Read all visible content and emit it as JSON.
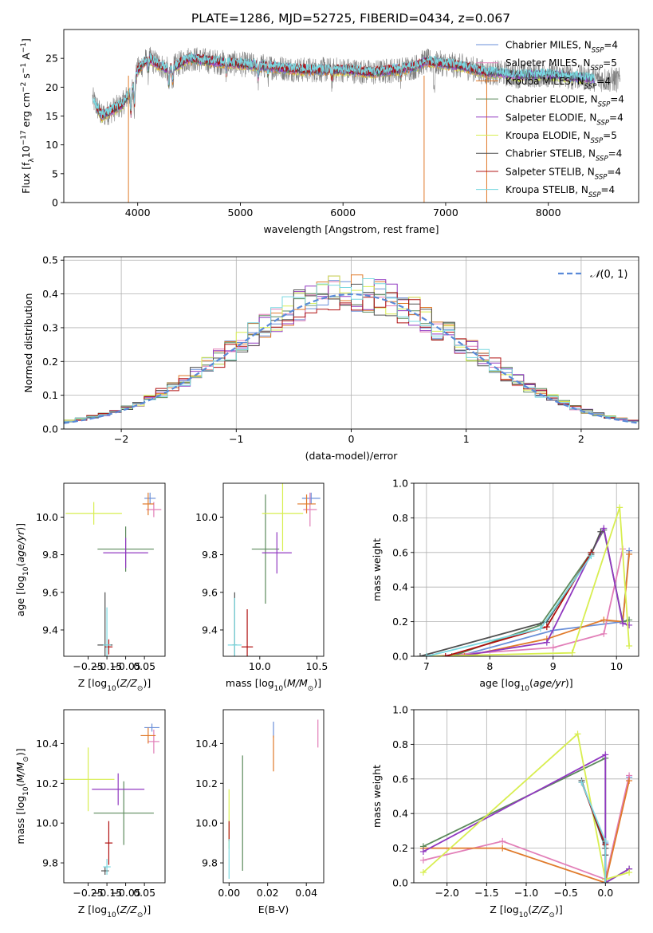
{
  "figure": {
    "title": "PLATE=1286, MJD=52725, FIBERID=0434, z=0.067"
  },
  "palette": [
    "#6a8fd8",
    "#e27fb8",
    "#e07a2a",
    "#5c8a5c",
    "#9038c0",
    "#d8ee50",
    "#505050",
    "#b01010",
    "#7ad8e0"
  ],
  "chart_data": [
    {
      "id": "spectrum",
      "type": "line",
      "xlabel": "wavelength [Angstrom, rest frame]",
      "ylabel": "Flux [f_λ 10^-17 erg cm^-2 s^-1 A^-1]",
      "xlim": [
        3280,
        8880
      ],
      "ylim": [
        0,
        30
      ],
      "xticks": [
        4000,
        5000,
        6000,
        7000,
        8000
      ],
      "yticks": [
        0,
        5,
        10,
        15,
        20,
        25
      ],
      "grid": false,
      "legend_position": "top-right",
      "series": [
        {
          "name": "Chabrier MILES, N_SSP=4"
        },
        {
          "name": "Salpeter MILES, N_SSP=5"
        },
        {
          "name": "Kroupa MILES, N_SSP=4"
        },
        {
          "name": "Chabrier ELODIE, N_SSP=4"
        },
        {
          "name": "Salpeter ELODIE, N_SSP=4"
        },
        {
          "name": "Kroupa ELODIE, N_SSP=5"
        },
        {
          "name": "Chabrier STELIB, N_SSP=4"
        },
        {
          "name": "Salpeter STELIB, N_SSP=4"
        },
        {
          "name": "Kroupa STELIB, N_SSP=4"
        }
      ],
      "continuum": {
        "wavelength": [
          3560,
          3650,
          3750,
          3850,
          3950,
          4000,
          4100,
          4200,
          4300,
          4500,
          4700,
          5000,
          5300,
          5600,
          6000,
          6300,
          6500,
          6700,
          6800,
          7000,
          7200,
          7400,
          7500,
          7700,
          8000,
          8200,
          8400,
          8700
        ],
        "flux": [
          18,
          15,
          16,
          17,
          20,
          23,
          25,
          24,
          23,
          25,
          24.5,
          24,
          23.5,
          23,
          23,
          22.5,
          23,
          23.5,
          24.5,
          24,
          23.5,
          22.5,
          22.5,
          22,
          22.2,
          21.8,
          21.5,
          21.2
        ]
      }
    },
    {
      "id": "residuals",
      "type": "histogram",
      "xlabel": "(data-model)/error",
      "ylabel": "Normed distribution",
      "xlim": [
        -2.5,
        2.5
      ],
      "ylim": [
        0,
        0.51
      ],
      "xticks": [
        -2,
        -1,
        0,
        1,
        2
      ],
      "yticks": [
        0.0,
        0.1,
        0.2,
        0.3,
        0.4,
        0.5
      ],
      "grid": true,
      "legend_position": "top-right",
      "reference": {
        "name": "N(0,1)",
        "mean": 0,
        "sigma": 1
      },
      "bins": {
        "start": -2.5,
        "width": 0.1,
        "count": 50
      }
    },
    {
      "id": "age_vs_Z",
      "type": "scatter",
      "xlabel": "Z [log10(Z/Z⊙)]",
      "ylabel": "age [log10(age/yr)]",
      "xlim": [
        -0.38,
        0.16
      ],
      "ylim": [
        9.26,
        10.18
      ],
      "xticks": [
        -0.25,
        -0.15,
        -0.05,
        0.05
      ],
      "yticks": [
        9.4,
        9.6,
        9.8,
        10.0
      ],
      "points": [
        {
          "x": 0.08,
          "y": 10.1,
          "xerr": 0.03,
          "yerr": 0.03,
          "color": 0
        },
        {
          "x": 0.1,
          "y": 10.04,
          "xerr": 0.04,
          "yerr": 0.04,
          "color": 1
        },
        {
          "x": 0.07,
          "y": 10.07,
          "xerr": 0.03,
          "yerr": 0.06,
          "color": 2
        },
        {
          "x": -0.05,
          "y": 9.83,
          "xerr": 0.15,
          "yerr": 0.12,
          "color": 3
        },
        {
          "x": -0.05,
          "y": 9.81,
          "xerr": 0.12,
          "yerr": 0.08,
          "color": 4
        },
        {
          "x": -0.22,
          "y": 10.02,
          "xerr": 0.15,
          "yerr": 0.06,
          "color": 5
        },
        {
          "x": -0.16,
          "y": 9.32,
          "xerr": 0.04,
          "yerr": 0.28,
          "color": 6
        },
        {
          "x": -0.14,
          "y": 9.31,
          "xerr": 0.02,
          "yerr": 0.04,
          "color": 7
        },
        {
          "x": -0.15,
          "y": 9.32,
          "xerr": 0.02,
          "yerr": 0.2,
          "color": 8
        }
      ]
    },
    {
      "id": "age_vs_mass",
      "type": "scatter",
      "xlabel": "mass [log10(M/M⊙)]",
      "ylabel": "",
      "xlim": [
        9.68,
        10.56
      ],
      "ylim": [
        9.26,
        10.18
      ],
      "xticks": [
        10.0,
        10.5
      ],
      "yticks": [
        9.4,
        9.6,
        9.8,
        10.0
      ],
      "points": [
        {
          "x": 10.45,
          "y": 10.1,
          "xerr": 0.08,
          "yerr": 0.03,
          "color": 0
        },
        {
          "x": 10.44,
          "y": 10.04,
          "xerr": 0.06,
          "yerr": 0.09,
          "color": 1
        },
        {
          "x": 10.41,
          "y": 10.07,
          "xerr": 0.08,
          "yerr": 0.05,
          "color": 2
        },
        {
          "x": 10.05,
          "y": 9.83,
          "xerr": 0.12,
          "yerr": 0.29,
          "color": 3
        },
        {
          "x": 10.15,
          "y": 9.81,
          "xerr": 0.13,
          "yerr": 0.11,
          "color": 4
        },
        {
          "x": 10.2,
          "y": 10.02,
          "xerr": 0.18,
          "yerr": 0.2,
          "color": 5
        },
        {
          "x": 9.78,
          "y": 9.32,
          "xerr": 0.02,
          "yerr": 0.28,
          "color": 6
        },
        {
          "x": 9.89,
          "y": 9.31,
          "xerr": 0.05,
          "yerr": 0.2,
          "color": 7
        },
        {
          "x": 9.78,
          "y": 9.32,
          "xerr": 0.06,
          "yerr": 0.25,
          "color": 8
        }
      ]
    },
    {
      "id": "weight_vs_age",
      "type": "line",
      "xlabel": "age [log10(age/yr)]",
      "ylabel": "mass weight",
      "xlim": [
        6.8,
        10.35
      ],
      "ylim": [
        0,
        1.0
      ],
      "xticks": [
        7,
        8,
        9,
        10
      ],
      "yticks": [
        0.0,
        0.2,
        0.4,
        0.6,
        0.8,
        1.0
      ],
      "grid": true,
      "series": [
        {
          "color": 0,
          "x": [
            7.5,
            9.0,
            10.1,
            10.2
          ],
          "y": [
            0.0,
            0.15,
            0.2,
            0.61
          ]
        },
        {
          "color": 1,
          "x": [
            7.1,
            9.0,
            9.8,
            10.1
          ],
          "y": [
            0.0,
            0.05,
            0.13,
            0.62
          ]
        },
        {
          "color": 2,
          "x": [
            7.6,
            8.9,
            9.8,
            10.1,
            10.2
          ],
          "y": [
            0.0,
            0.1,
            0.21,
            0.2,
            0.59
          ]
        },
        {
          "color": 3,
          "x": [
            7.4,
            8.8,
            9.6,
            9.8,
            10.1,
            10.2
          ],
          "y": [
            0.0,
            0.18,
            0.6,
            0.73,
            0.2,
            0.21
          ]
        },
        {
          "color": 4,
          "x": [
            7.5,
            8.9,
            9.8,
            10.1,
            10.2
          ],
          "y": [
            0.0,
            0.08,
            0.74,
            0.19,
            0.18
          ]
        },
        {
          "color": 5,
          "x": [
            7.0,
            9.3,
            10.05,
            10.2
          ],
          "y": [
            0.0,
            0.02,
            0.86,
            0.06
          ]
        },
        {
          "color": 6,
          "x": [
            6.9,
            8.9,
            9.6,
            9.75
          ],
          "y": [
            0.0,
            0.2,
            0.59,
            0.72
          ]
        },
        {
          "color": 7,
          "x": [
            7.3,
            8.9,
            9.6
          ],
          "y": [
            0.0,
            0.17,
            0.6
          ]
        },
        {
          "color": 8,
          "x": [
            7.0,
            8.8,
            9.6
          ],
          "y": [
            0.0,
            0.16,
            0.58
          ]
        }
      ]
    },
    {
      "id": "mass_vs_Z",
      "type": "scatter",
      "xlabel": "Z [log10(Z/Z⊙)]",
      "ylabel": "mass [log10(M/M⊙)]",
      "xlim": [
        -0.38,
        0.16
      ],
      "ylim": [
        9.7,
        10.57
      ],
      "xticks": [
        -0.25,
        -0.15,
        -0.05,
        0.05
      ],
      "yticks": [
        9.8,
        10.0,
        10.2,
        10.4
      ],
      "points": [
        {
          "x": 0.09,
          "y": 10.48,
          "xerr": 0.04,
          "yerr": 0.02,
          "color": 0
        },
        {
          "x": 0.1,
          "y": 10.41,
          "xerr": 0.03,
          "yerr": 0.06,
          "color": 1
        },
        {
          "x": 0.07,
          "y": 10.44,
          "xerr": 0.04,
          "yerr": 0.04,
          "color": 2
        },
        {
          "x": -0.06,
          "y": 10.05,
          "xerr": 0.16,
          "yerr": 0.16,
          "color": 3
        },
        {
          "x": -0.09,
          "y": 10.17,
          "xerr": 0.14,
          "yerr": 0.08,
          "color": 4
        },
        {
          "x": -0.25,
          "y": 10.22,
          "xerr": 0.14,
          "yerr": 0.16,
          "color": 5
        },
        {
          "x": -0.16,
          "y": 9.76,
          "xerr": 0.02,
          "yerr": 0.02,
          "color": 6
        },
        {
          "x": -0.14,
          "y": 9.9,
          "xerr": 0.02,
          "yerr": 0.11,
          "color": 7
        },
        {
          "x": -0.15,
          "y": 9.78,
          "xerr": 0.02,
          "yerr": 0.04,
          "color": 8
        }
      ]
    },
    {
      "id": "mass_vs_ebv",
      "type": "scatter",
      "xlabel": "E(B-V)",
      "ylabel": "",
      "xlim": [
        -0.003,
        0.049
      ],
      "ylim": [
        9.7,
        10.57
      ],
      "xticks": [
        0.0,
        0.02,
        0.04
      ],
      "yticks": [
        9.8,
        10.0,
        10.2,
        10.4
      ],
      "points": [
        {
          "x": 0.023,
          "y": 10.47,
          "yerr": 0.04,
          "color": 0
        },
        {
          "x": 0.046,
          "y": 10.45,
          "yerr": 0.07,
          "color": 1
        },
        {
          "x": 0.023,
          "y": 10.35,
          "yerr": 0.09,
          "color": 2
        },
        {
          "x": 0.007,
          "y": 10.05,
          "yerr": 0.29,
          "color": 3
        },
        {
          "x": 0.0,
          "y": 10.02,
          "yerr": 0.15,
          "color": 5
        },
        {
          "x": 0.0,
          "y": 9.96,
          "yerr": 0.05,
          "color": 7
        },
        {
          "x": 0.0,
          "y": 9.82,
          "yerr": 0.1,
          "color": 8
        }
      ]
    },
    {
      "id": "weight_vs_Z",
      "type": "line",
      "xlabel": "Z [log10(Z/Z⊙)]",
      "ylabel": "mass weight",
      "xlim": [
        -2.42,
        0.42
      ],
      "ylim": [
        0,
        1.0
      ],
      "xticks": [
        -2.0,
        -1.5,
        -1.0,
        -0.5,
        0.0
      ],
      "yticks": [
        0.0,
        0.2,
        0.4,
        0.6,
        0.8,
        1.0
      ],
      "grid": true,
      "series": [
        {
          "color": 0,
          "x": [
            -0.3,
            0.0,
            0.0,
            0.3
          ],
          "y": [
            0.58,
            0.23,
            0.02,
            0.61
          ]
        },
        {
          "color": 1,
          "x": [
            -2.3,
            -1.3,
            0.0,
            0.3
          ],
          "y": [
            0.13,
            0.24,
            0.02,
            0.62
          ]
        },
        {
          "color": 2,
          "x": [
            -2.3,
            -1.3,
            0.0,
            0.3
          ],
          "y": [
            0.2,
            0.2,
            0.0,
            0.59
          ]
        },
        {
          "color": 3,
          "x": [
            -2.3,
            0.0,
            0.0,
            0.3
          ],
          "y": [
            0.21,
            0.72,
            0.0,
            0.08
          ]
        },
        {
          "color": 4,
          "x": [
            -2.3,
            0.0,
            0.0,
            0.3
          ],
          "y": [
            0.18,
            0.74,
            0.0,
            0.08
          ]
        },
        {
          "color": 5,
          "x": [
            -2.3,
            -0.35,
            0.0,
            0.3
          ],
          "y": [
            0.06,
            0.86,
            0.02,
            0.06
          ]
        },
        {
          "color": 6,
          "x": [
            -0.3,
            0.0,
            0.0
          ],
          "y": [
            0.59,
            0.2,
            0.16
          ]
        },
        {
          "color": 7,
          "x": [
            -0.3,
            0.0,
            0.0
          ],
          "y": [
            0.58,
            0.22,
            0.0
          ]
        },
        {
          "color": 8,
          "x": [
            -0.3,
            0.0,
            0.0
          ],
          "y": [
            0.58,
            0.24,
            0.0
          ]
        }
      ]
    }
  ]
}
